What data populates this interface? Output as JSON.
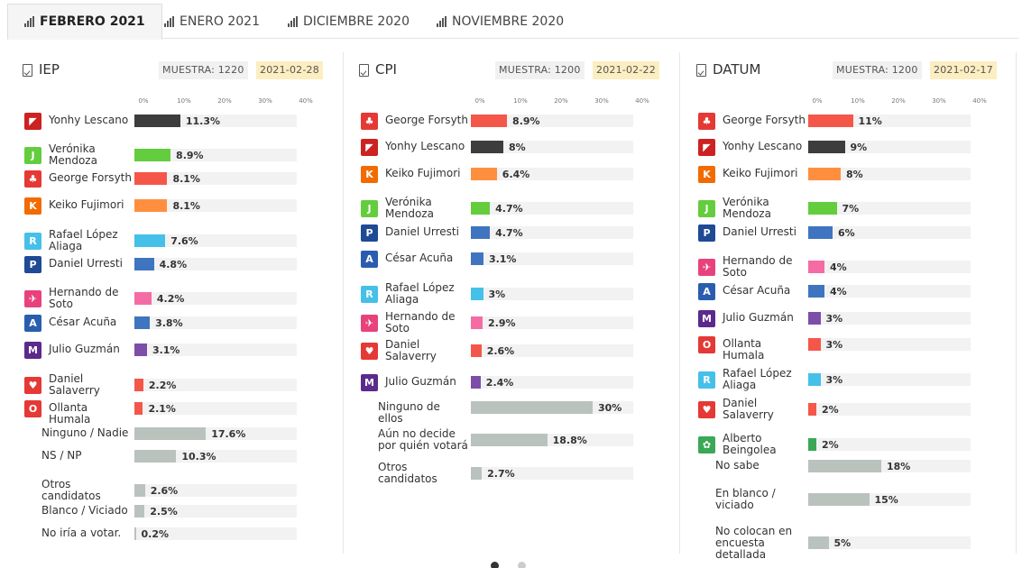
{
  "tabs": [
    {
      "label": "FEBRERO 2021",
      "active": true
    },
    {
      "label": "ENERO 2021",
      "active": false
    },
    {
      "label": "DICIEMBRE 2020",
      "active": false
    },
    {
      "label": "NOVIEMBRE 2020",
      "active": false
    }
  ],
  "colors": {
    "grey": "#bac2be",
    "accent_date": "#fbeec1"
  },
  "chart_data": [
    {
      "type": "bar",
      "pollster": "IEP",
      "sample_label": "MUESTRA: 1220",
      "date": "2021-02-28",
      "ticks": [
        "0%",
        "10%",
        "20%",
        "30%",
        "40%"
      ],
      "xlim": [
        0,
        40
      ],
      "rows": [
        {
          "name": "Yonhy Lescano",
          "value": 11.3,
          "label": "11.3%",
          "color": "#3d3d3d",
          "logo": "bandera-icon",
          "logo_color": "#cc2222"
        },
        {
          "name": "Verónika Mendoza",
          "value": 8.9,
          "label": "8.9%",
          "color": "#63cd3e",
          "logo": "jp-icon",
          "logo_color": "#63cd3e"
        },
        {
          "name": "George Forsyth",
          "value": 8.1,
          "label": "8.1%",
          "color": "#f4574a",
          "logo": "campana-icon",
          "logo_color": "#e53935"
        },
        {
          "name": "Keiko Fujimori",
          "value": 8.1,
          "label": "8.1%",
          "color": "#ff8f3e",
          "logo": "k-icon",
          "logo_color": "#f26b00"
        },
        {
          "name": "Rafael López Aliaga",
          "value": 7.6,
          "label": "7.6%",
          "color": "#45c0e8",
          "logo": "r-icon",
          "logo_color": "#45c0e8"
        },
        {
          "name": "Daniel Urresti",
          "value": 4.8,
          "label": "4.8%",
          "color": "#3f75c0",
          "logo": "p-icon",
          "logo_color": "#1f4a94"
        },
        {
          "name": "Hernando de Soto",
          "value": 4.2,
          "label": "4.2%",
          "color": "#f56ca4",
          "logo": "zapatilla-icon",
          "logo_color": "#e8427d"
        },
        {
          "name": "César Acuña",
          "value": 3.8,
          "label": "3.8%",
          "color": "#3f75c0",
          "logo": "a-icon",
          "logo_color": "#2a5db0"
        },
        {
          "name": "Julio Guzmán",
          "value": 3.1,
          "label": "3.1%",
          "color": "#7d4ea8",
          "logo": "m-icon",
          "logo_color": "#5b2a8c"
        },
        {
          "name": "Daniel Salaverry",
          "value": 2.2,
          "label": "2.2%",
          "color": "#f4574a",
          "logo": "corazon-icon",
          "logo_color": "#e53935"
        },
        {
          "name": "Ollanta Humala",
          "value": 2.1,
          "label": "2.1%",
          "color": "#f4574a",
          "logo": "o-icon",
          "logo_color": "#e53935"
        },
        {
          "name": "Ninguno / Nadie",
          "value": 17.6,
          "label": "17.6%",
          "color": "#bac2be"
        },
        {
          "name": "NS / NP",
          "value": 10.3,
          "label": "10.3%",
          "color": "#bac2be"
        },
        {
          "name": "Otros candidatos",
          "value": 2.6,
          "label": "2.6%",
          "color": "#bac2be"
        },
        {
          "name": "Blanco / Viciado",
          "value": 2.5,
          "label": "2.5%",
          "color": "#bac2be"
        },
        {
          "name": "No iría a votar.",
          "value": 0.2,
          "label": "0.2%",
          "color": "#bac2be"
        }
      ]
    },
    {
      "type": "bar",
      "pollster": "CPI",
      "sample_label": "MUESTRA: 1200",
      "date": "2021-02-22",
      "ticks": [
        "0%",
        "10%",
        "20%",
        "30%",
        "40%"
      ],
      "xlim": [
        0,
        40
      ],
      "rows": [
        {
          "name": "George Forsyth",
          "value": 8.9,
          "label": "8.9%",
          "color": "#f4574a",
          "logo": "campana-icon",
          "logo_color": "#e53935"
        },
        {
          "name": "Yonhy Lescano",
          "value": 8,
          "label": "8%",
          "color": "#3d3d3d",
          "logo": "bandera-icon",
          "logo_color": "#cc2222"
        },
        {
          "name": "Keiko Fujimori",
          "value": 6.4,
          "label": "6.4%",
          "color": "#ff8f3e",
          "logo": "k-icon",
          "logo_color": "#f26b00"
        },
        {
          "name": "Verónika Mendoza",
          "value": 4.7,
          "label": "4.7%",
          "color": "#63cd3e",
          "logo": "jp-icon",
          "logo_color": "#63cd3e"
        },
        {
          "name": "Daniel Urresti",
          "value": 4.7,
          "label": "4.7%",
          "color": "#3f75c0",
          "logo": "p-icon",
          "logo_color": "#1f4a94"
        },
        {
          "name": "César Acuña",
          "value": 3.1,
          "label": "3.1%",
          "color": "#3f75c0",
          "logo": "a-icon",
          "logo_color": "#2a5db0"
        },
        {
          "name": "Rafael López Aliaga",
          "value": 3,
          "label": "3%",
          "color": "#45c0e8",
          "logo": "r-icon",
          "logo_color": "#45c0e8"
        },
        {
          "name": "Hernando de Soto",
          "value": 2.9,
          "label": "2.9%",
          "color": "#f56ca4",
          "logo": "zapatilla-icon",
          "logo_color": "#e8427d"
        },
        {
          "name": "Daniel Salaverry",
          "value": 2.6,
          "label": "2.6%",
          "color": "#f4574a",
          "logo": "corazon-icon",
          "logo_color": "#e53935"
        },
        {
          "name": "Julio Guzmán",
          "value": 2.4,
          "label": "2.4%",
          "color": "#7d4ea8",
          "logo": "m-icon",
          "logo_color": "#5b2a8c"
        },
        {
          "name": "Ninguno de ellos",
          "value": 30,
          "label": "30%",
          "color": "#bac2be"
        },
        {
          "name": "Aún no decide por quién votará",
          "value": 18.8,
          "label": "18.8%",
          "color": "#bac2be"
        },
        {
          "name": "Otros candidatos",
          "value": 2.7,
          "label": "2.7%",
          "color": "#bac2be"
        }
      ]
    },
    {
      "type": "bar",
      "pollster": "DATUM",
      "sample_label": "MUESTRA: 1200",
      "date": "2021-02-17",
      "ticks": [
        "0%",
        "10%",
        "20%",
        "30%",
        "40%"
      ],
      "xlim": [
        0,
        40
      ],
      "rows": [
        {
          "name": "George Forsyth",
          "value": 11,
          "label": "11%",
          "color": "#f4574a",
          "logo": "campana-icon",
          "logo_color": "#e53935"
        },
        {
          "name": "Yonhy Lescano",
          "value": 9,
          "label": "9%",
          "color": "#3d3d3d",
          "logo": "bandera-icon",
          "logo_color": "#cc2222"
        },
        {
          "name": "Keiko Fujimori",
          "value": 8,
          "label": "8%",
          "color": "#ff8f3e",
          "logo": "k-icon",
          "logo_color": "#f26b00"
        },
        {
          "name": "Verónika Mendoza",
          "value": 7,
          "label": "7%",
          "color": "#63cd3e",
          "logo": "jp-icon",
          "logo_color": "#63cd3e"
        },
        {
          "name": "Daniel Urresti",
          "value": 6,
          "label": "6%",
          "color": "#3f75c0",
          "logo": "p-icon",
          "logo_color": "#1f4a94"
        },
        {
          "name": "Hernando de Soto",
          "value": 4,
          "label": "4%",
          "color": "#f56ca4",
          "logo": "zapatilla-icon",
          "logo_color": "#e8427d"
        },
        {
          "name": "César Acuña",
          "value": 4,
          "label": "4%",
          "color": "#3f75c0",
          "logo": "a-icon",
          "logo_color": "#2a5db0"
        },
        {
          "name": "Julio Guzmán",
          "value": 3,
          "label": "3%",
          "color": "#7d4ea8",
          "logo": "m-icon",
          "logo_color": "#5b2a8c"
        },
        {
          "name": "Ollanta Humala",
          "value": 3,
          "label": "3%",
          "color": "#f4574a",
          "logo": "o-icon",
          "logo_color": "#e53935"
        },
        {
          "name": "Rafael López Aliaga",
          "value": 3,
          "label": "3%",
          "color": "#45c0e8",
          "logo": "r-icon",
          "logo_color": "#45c0e8"
        },
        {
          "name": "Daniel Salaverry",
          "value": 2,
          "label": "2%",
          "color": "#f4574a",
          "logo": "corazon-icon",
          "logo_color": "#e53935"
        },
        {
          "name": "Alberto Beingolea",
          "value": 2,
          "label": "2%",
          "color": "#3aa856",
          "logo": "trebol-icon",
          "logo_color": "#3aa856"
        },
        {
          "name": "No sabe",
          "value": 18,
          "label": "18%",
          "color": "#bac2be"
        },
        {
          "name": "En blanco / viciado",
          "value": 15,
          "label": "15%",
          "color": "#bac2be"
        },
        {
          "name": "No colocan en encuesta detallada",
          "value": 5,
          "label": "5%",
          "color": "#bac2be"
        }
      ]
    }
  ],
  "pager": {
    "pages": 2,
    "current": 0
  }
}
